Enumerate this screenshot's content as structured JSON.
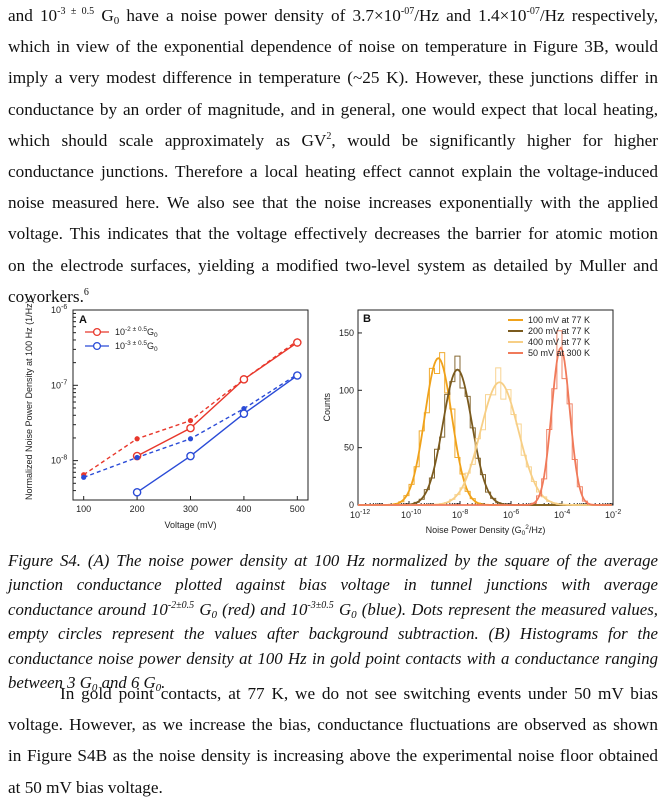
{
  "paragraph1": {
    "lines": [
      [
        "and 10",
        "-3 ± 0.5",
        " G",
        "0",
        " have a noise power density of 3.7×10",
        "-07",
        "/Hz and 1.4×10",
        "-07",
        "/Hz respectively,"
      ],
      [
        "which in view of the exponential dependence of noise on temperature in Figure 3B, would"
      ],
      [
        "imply a very modest difference in temperature (~25 K). However, these junctions differ in"
      ],
      [
        "conductance by an order of magnitude, and in general, one would expect that local heating,"
      ],
      [
        "which should scale approximately as GV",
        "2",
        ", would be significantly higher for higher"
      ],
      [
        "conductance junctions. Therefore a local heating effect cannot explain the voltage-induced"
      ],
      [
        "noise measured here. We also see that the noise increases exponentially with the applied"
      ],
      [
        "voltage. This indicates that the voltage effectively decreases the barrier for atomic motion"
      ],
      [
        "on the electrode surfaces, yielding a modified two-level system as detailed by Muller and"
      ],
      [
        "coworkers.",
        "6"
      ]
    ]
  },
  "figure_a": {
    "panel_label": "A",
    "ylabel": "Normalized Noise Power Density at 100 Hz (1/Hz)",
    "xlabel": "Voltage (mV)",
    "legend": [
      {
        "base": "10",
        "exp": "-2 ± 0.5",
        "unit": "G",
        "sub": "0",
        "color": "#e8382c"
      },
      {
        "base": "10",
        "exp": "-3 ± 0.5",
        "unit": "G",
        "sub": "0",
        "color": "#2a4bd7"
      }
    ]
  },
  "figure_b": {
    "panel_label": "B",
    "ylabel": "Counts",
    "xlabel_main": "Noise Power Density (G",
    "xlabel_sub": "0",
    "xlabel_sup": "2",
    "xlabel_end": "/Hz)",
    "legend": [
      {
        "label": "100 mV at 77 K",
        "color": "#f0a21a"
      },
      {
        "label": "200 mV at 77 K",
        "color": "#7a5a1e"
      },
      {
        "label": "400 mV at 77 K",
        "color": "#f7cf86"
      },
      {
        "label": "50 mV at 300 K",
        "color": "#f07a5a"
      }
    ]
  },
  "chart_data": [
    {
      "type": "line",
      "xlabel": "Voltage (mV)",
      "ylabel": "Normalized Noise Power Density at 100 Hz (1/Hz)",
      "xlim": [
        80,
        520
      ],
      "ylim": [
        3e-09,
        1e-06
      ],
      "yscale": "log",
      "xticks": [
        100,
        200,
        300,
        400,
        500
      ],
      "yticks": [
        1e-08,
        1e-07,
        1e-06
      ],
      "ytick_labels": [
        [
          "10",
          "-8"
        ],
        [
          "10",
          "-7"
        ],
        [
          "10",
          "-6"
        ]
      ],
      "series": [
        {
          "name": "10^-2 ± 0.5 G0 (measured)",
          "color": "#e8382c",
          "style": "dashed-dot",
          "x": [
            100,
            200,
            300,
            400,
            500
          ],
          "y": [
            6.5e-09,
            1.95e-08,
            3.4e-08,
            1.2e-07,
            3.9e-07
          ]
        },
        {
          "name": "10^-2 ± 0.5 G0 (background subtracted)",
          "color": "#e8382c",
          "style": "solid-circle",
          "x": [
            200,
            300,
            400,
            500
          ],
          "y": [
            1.15e-08,
            2.7e-08,
            1.2e-07,
            3.7e-07
          ]
        },
        {
          "name": "10^-3 ± 0.5 G0 (measured)",
          "color": "#2a4bd7",
          "style": "dashed-dot",
          "x": [
            100,
            200,
            300,
            400,
            500
          ],
          "y": [
            6e-09,
            1.1e-08,
            1.95e-08,
            4.9e-08,
            1.4e-07
          ]
        },
        {
          "name": "10^-3 ± 0.5 G0 (background subtracted)",
          "color": "#2a4bd7",
          "style": "solid-circle",
          "x": [
            200,
            300,
            400,
            500
          ],
          "y": [
            3.8e-09,
            1.15e-08,
            4.2e-08,
            1.35e-07
          ]
        }
      ]
    },
    {
      "type": "histogram",
      "xlabel": "Noise Power Density (G0^2/Hz)",
      "ylabel": "Counts",
      "xscale": "log",
      "xlim_log10": [
        -12,
        -2
      ],
      "ylim": [
        0,
        170
      ],
      "xticks_log10": [
        -12,
        -10,
        -8,
        -6,
        -4,
        -2
      ],
      "yticks": [
        0,
        50,
        100,
        150
      ],
      "legend_position": "top-right",
      "series": [
        {
          "name": "100 mV at 77 K",
          "color": "#f0a21a",
          "peak_log10": -8.85,
          "width_log10": 0.75,
          "amplitude": 128
        },
        {
          "name": "200 mV at 77 K",
          "color": "#7a5a1e",
          "peak_log10": -8.1,
          "width_log10": 0.8,
          "amplitude": 118
        },
        {
          "name": "400 mV at 77 K",
          "color": "#f7cf86",
          "peak_log10": -6.45,
          "width_log10": 1.05,
          "amplitude": 107
        },
        {
          "name": "50 mV at 300 K",
          "color": "#f07a5a",
          "peak_log10": -4.05,
          "width_log10": 0.5,
          "amplitude": 137
        }
      ]
    }
  ],
  "caption": {
    "lines": [
      [
        "Figure S4. (A) The noise power density at 100 Hz normalized by the square of the average"
      ],
      [
        "junction conductance plotted against bias voltage in tunnel junctions with average"
      ],
      [
        "conductance around 10",
        "-2±0.5",
        " G",
        "0",
        " (red) and 10",
        "-3±0.5",
        " G",
        "0",
        " (blue). Dots represent the measured values,"
      ],
      [
        "empty circles represent the values after background subtraction. (B) Histograms for the"
      ],
      [
        "conductance noise power density at 100 Hz in gold point contacts with a conductance ranging"
      ],
      [
        "between 3 G",
        "0",
        " and 6 G",
        "0",
        "."
      ]
    ]
  },
  "paragraph2": {
    "lines": [
      [
        "In gold point contacts, at 77 K, we do not see switching events under 50 mV bias"
      ],
      [
        "voltage. However, as we increase the bias, conductance fluctuations are observed as shown"
      ],
      [
        "in Figure S4B as the noise density is increasing above the experimental noise floor obtained"
      ],
      [
        "at 50 mV bias voltage."
      ]
    ]
  }
}
